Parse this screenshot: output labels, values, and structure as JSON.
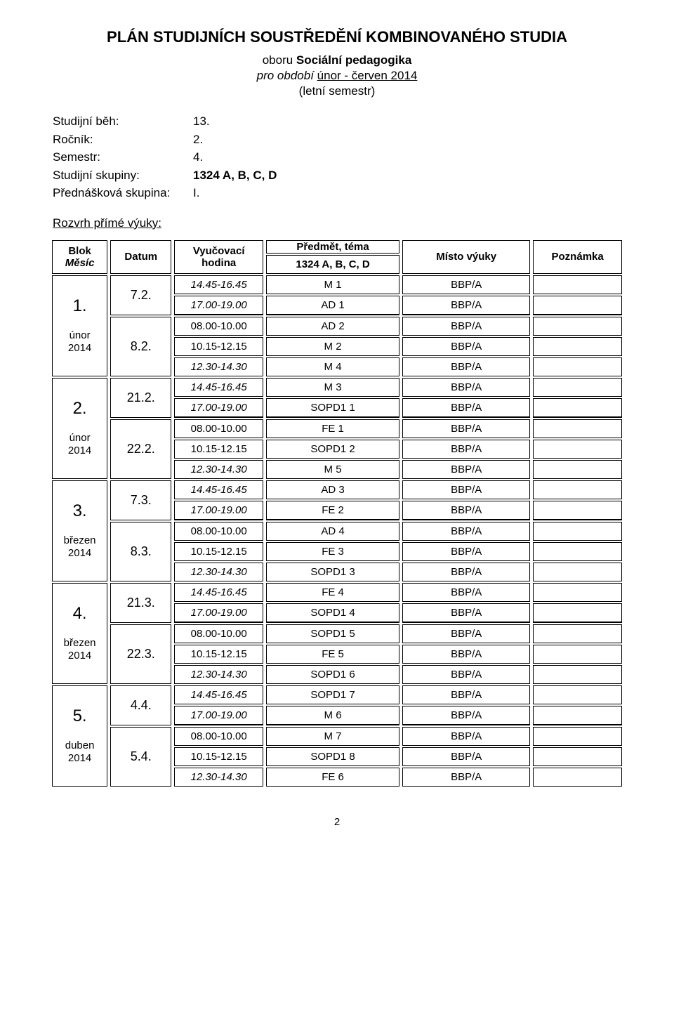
{
  "title": "PLÁN STUDIJNÍCH SOUSTŘEDĚNÍ KOMBINOVANÉHO STUDIA",
  "subtitle_line1_prefix": "oboru ",
  "subtitle_line1_bold": "Sociální pedagogika",
  "subtitle_line2_prefix": "pro období    ",
  "subtitle_line2_link": "únor - červen 2014",
  "subtitle_line3": "(letní semestr)",
  "info": {
    "rows": [
      {
        "label": "Studijní běh:",
        "value": "13."
      },
      {
        "label": "Ročník:",
        "value": "2."
      },
      {
        "label": "Semestr:",
        "value": "4."
      },
      {
        "label": "Studijní skupiny:",
        "value": "1324 A, B, C, D",
        "bold": true
      },
      {
        "label": "Přednášková skupina:",
        "value": "I."
      }
    ]
  },
  "section_title": "Rozvrh přímé výuky:",
  "headers": {
    "blok": "Blok",
    "mesic": "Měsíc",
    "datum": "Datum",
    "hodina": "Vyučovací hodina",
    "predmet_top": "Předmět, téma",
    "predmet_bottom": "1324 A, B, C, D",
    "misto": "Místo výuky",
    "poznamka": "Poznámka"
  },
  "blocks": [
    {
      "num": "1.",
      "month": "únor",
      "year": "2014",
      "day1": "7.2.",
      "day2": "8.2.",
      "rows": [
        {
          "hod": "14.45-16.45",
          "italic": true,
          "pred": "M 1",
          "misto": "BBP/A",
          "pozn": ""
        },
        {
          "hod": "17.00-19.00",
          "italic": true,
          "pred": "AD 1",
          "misto": "BBP/A",
          "pozn": ""
        },
        {
          "hod": "08.00-10.00",
          "italic": false,
          "pred": "AD 2",
          "misto": "BBP/A",
          "pozn": ""
        },
        {
          "hod": "10.15-12.15",
          "italic": false,
          "pred": "M 2",
          "misto": "BBP/A",
          "pozn": ""
        },
        {
          "hod": "12.30-14.30",
          "italic": true,
          "pred": "M 4",
          "misto": "BBP/A",
          "pozn": ""
        }
      ]
    },
    {
      "num": "2.",
      "month": "únor",
      "year": "2014",
      "day1": "21.2.",
      "day2": "22.2.",
      "rows": [
        {
          "hod": "14.45-16.45",
          "italic": true,
          "pred": "M 3",
          "misto": "BBP/A",
          "pozn": ""
        },
        {
          "hod": "17.00-19.00",
          "italic": true,
          "pred": "SOPD1 1",
          "misto": "BBP/A",
          "pozn": ""
        },
        {
          "hod": "08.00-10.00",
          "italic": false,
          "pred": "FE 1",
          "misto": "BBP/A",
          "pozn": ""
        },
        {
          "hod": "10.15-12.15",
          "italic": false,
          "pred": "SOPD1 2",
          "misto": "BBP/A",
          "pozn": ""
        },
        {
          "hod": "12.30-14.30",
          "italic": true,
          "pred": "M 5",
          "misto": "BBP/A",
          "pozn": ""
        }
      ]
    },
    {
      "num": "3.",
      "month": "březen",
      "year": "2014",
      "day1": "7.3.",
      "day2": "8.3.",
      "rows": [
        {
          "hod": "14.45-16.45",
          "italic": true,
          "pred": "AD 3",
          "misto": "BBP/A",
          "pozn": ""
        },
        {
          "hod": "17.00-19.00",
          "italic": true,
          "pred": "FE 2",
          "misto": "BBP/A",
          "pozn": ""
        },
        {
          "hod": "08.00-10.00",
          "italic": false,
          "pred": "AD 4",
          "misto": "BBP/A",
          "pozn": ""
        },
        {
          "hod": "10.15-12.15",
          "italic": false,
          "pred": "FE 3",
          "misto": "BBP/A",
          "pozn": ""
        },
        {
          "hod": "12.30-14.30",
          "italic": true,
          "pred": "SOPD1 3",
          "misto": "BBP/A",
          "pozn": ""
        }
      ]
    },
    {
      "num": "4.",
      "month": "březen",
      "year": "2014",
      "day1": "21.3.",
      "day2": "22.3.",
      "rows": [
        {
          "hod": "14.45-16.45",
          "italic": true,
          "pred": "FE 4",
          "misto": "BBP/A",
          "pozn": ""
        },
        {
          "hod": "17.00-19.00",
          "italic": true,
          "pred": "SOPD1 4",
          "misto": "BBP/A",
          "pozn": ""
        },
        {
          "hod": "08.00-10.00",
          "italic": false,
          "pred": "SOPD1 5",
          "misto": "BBP/A",
          "pozn": ""
        },
        {
          "hod": "10.15-12.15",
          "italic": false,
          "pred": "FE 5",
          "misto": "BBP/A",
          "pozn": ""
        },
        {
          "hod": "12.30-14.30",
          "italic": true,
          "pred": "SOPD1 6",
          "misto": "BBP/A",
          "pozn": ""
        }
      ]
    },
    {
      "num": "5.",
      "month": "duben",
      "year": "2014",
      "day1": "4.4.",
      "day2": "5.4.",
      "rows": [
        {
          "hod": "14.45-16.45",
          "italic": true,
          "pred": "SOPD1 7",
          "misto": "BBP/A",
          "pozn": ""
        },
        {
          "hod": "17.00-19.00",
          "italic": true,
          "pred": "M 6",
          "misto": "BBP/A",
          "pozn": ""
        },
        {
          "hod": "08.00-10.00",
          "italic": false,
          "pred": "M 7",
          "misto": "BBP/A",
          "pozn": ""
        },
        {
          "hod": "10.15-12.15",
          "italic": false,
          "pred": "SOPD1 8",
          "misto": "BBP/A",
          "pozn": ""
        },
        {
          "hod": "12.30-14.30",
          "italic": true,
          "pred": "FE 6",
          "misto": "BBP/A",
          "pozn": ""
        }
      ]
    }
  ],
  "page_number": "2"
}
